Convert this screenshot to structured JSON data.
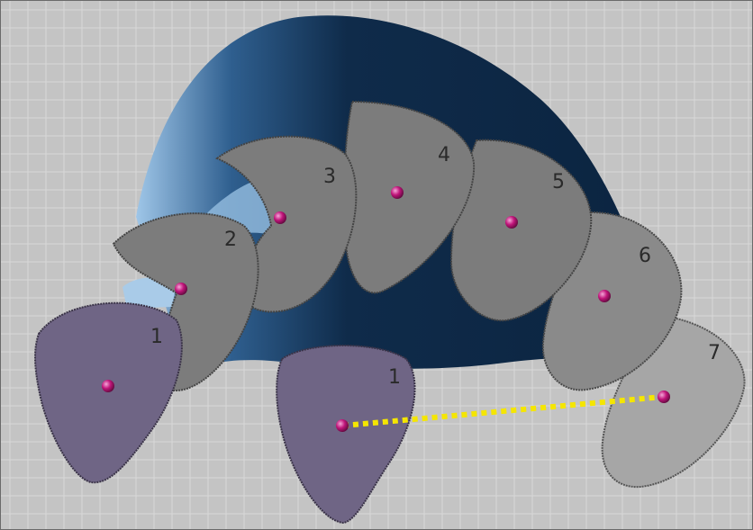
{
  "viewport": {
    "background_color": "#c4c4c4",
    "grid_color": "#d8d8d8",
    "surface_color": "#0f2b4a",
    "surface_highlight_color": "#9fc6e8"
  },
  "sections": [
    {
      "label": "1",
      "fill": "#6f6585",
      "role": "start-section"
    },
    {
      "label": "2",
      "fill": "#7c7c7c",
      "role": "intermediate-section"
    },
    {
      "label": "3",
      "fill": "#7c7c7c",
      "role": "intermediate-section"
    },
    {
      "label": "4",
      "fill": "#7c7c7c",
      "role": "intermediate-section"
    },
    {
      "label": "5",
      "fill": "#7c7c7c",
      "role": "intermediate-section"
    },
    {
      "label": "6",
      "fill": "#8a8a8a",
      "role": "intermediate-section"
    },
    {
      "label": "7",
      "fill": "#a6a6a6",
      "role": "end-section"
    },
    {
      "label": "1",
      "fill": "#6f6585",
      "role": "projected-section"
    }
  ],
  "point_color": "#c0157a",
  "path_line_color": "#f5e600"
}
